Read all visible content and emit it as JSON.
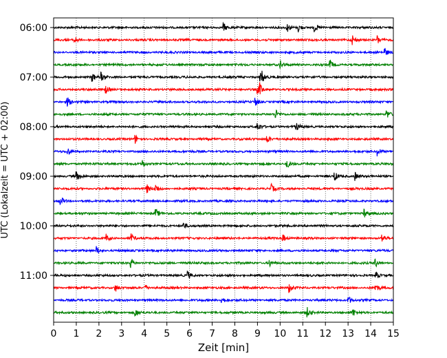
{
  "chart_data": {
    "type": "line",
    "title": "",
    "xlabel": "Zeit  [min]",
    "ylabel": "UTC (Lokalzeit = UTC + 02:00)",
    "xlim": [
      0,
      15
    ],
    "xticks": [
      "0",
      "1",
      "2",
      "3",
      "4",
      "5",
      "6",
      "7",
      "8",
      "9",
      "10",
      "11",
      "12",
      "13",
      "14",
      "15"
    ],
    "yticks": [
      "06:00",
      "07:00",
      "08:00",
      "09:00",
      "10:00",
      "11:00"
    ],
    "grid": "vertical dotted at each minute",
    "trace_interval_minutes": 15,
    "trace_colors": [
      "#000000",
      "#ff0000",
      "#0000ff",
      "#008000"
    ],
    "series": [
      {
        "start": "06:00",
        "color": "#000000",
        "events": [
          7.5,
          10.3,
          10.8,
          11.5
        ]
      },
      {
        "start": "06:15",
        "color": "#ff0000",
        "events": [
          0.9,
          13.2,
          14.3
        ]
      },
      {
        "start": "06:30",
        "color": "#0000ff",
        "events": [
          14.6
        ]
      },
      {
        "start": "06:45",
        "color": "#008000",
        "events": [
          10.0,
          12.2
        ]
      },
      {
        "start": "07:00",
        "color": "#000000",
        "events": [
          1.7,
          2.1,
          9.1,
          9.2
        ]
      },
      {
        "start": "07:15",
        "color": "#ff0000",
        "events": [
          2.3,
          9.0,
          9.1
        ]
      },
      {
        "start": "07:30",
        "color": "#0000ff",
        "events": [
          0.6,
          8.9
        ]
      },
      {
        "start": "07:45",
        "color": "#008000",
        "events": [
          9.8,
          14.7
        ]
      },
      {
        "start": "08:00",
        "color": "#000000",
        "events": [
          9.0,
          10.7
        ]
      },
      {
        "start": "08:15",
        "color": "#ff0000",
        "events": [
          3.6,
          9.4
        ]
      },
      {
        "start": "08:30",
        "color": "#0000ff",
        "events": [
          0.6,
          14.3
        ]
      },
      {
        "start": "08:45",
        "color": "#008000",
        "events": [
          3.9,
          10.3
        ]
      },
      {
        "start": "09:00",
        "color": "#000000",
        "events": [
          1.0,
          12.4,
          13.3
        ]
      },
      {
        "start": "09:15",
        "color": "#ff0000",
        "events": [
          4.1,
          4.5,
          9.6
        ]
      },
      {
        "start": "09:30",
        "color": "#0000ff",
        "events": [
          0.3
        ]
      },
      {
        "start": "09:45",
        "color": "#008000",
        "events": [
          4.5,
          13.7
        ]
      },
      {
        "start": "10:00",
        "color": "#000000",
        "events": [
          5.7
        ]
      },
      {
        "start": "10:15",
        "color": "#ff0000",
        "events": [
          2.3,
          3.4,
          10.1,
          14.5
        ]
      },
      {
        "start": "10:30",
        "color": "#0000ff",
        "events": [
          1.9
        ]
      },
      {
        "start": "10:45",
        "color": "#008000",
        "events": [
          3.4,
          9.5,
          14.2
        ]
      },
      {
        "start": "11:00",
        "color": "#000000",
        "events": [
          5.9,
          14.2
        ]
      },
      {
        "start": "11:15",
        "color": "#ff0000",
        "events": [
          2.7,
          4.0,
          10.4,
          14.2
        ]
      },
      {
        "start": "11:30",
        "color": "#0000ff",
        "events": [
          7.4,
          13.0
        ]
      },
      {
        "start": "11:45",
        "color": "#008000",
        "events": [
          3.6,
          11.2,
          13.2
        ]
      }
    ]
  }
}
